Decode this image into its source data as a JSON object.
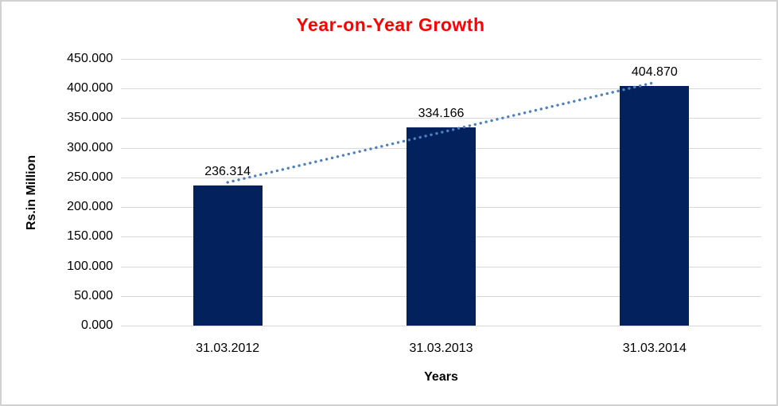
{
  "frame": {
    "background": "#ffffff",
    "border_color": "#d2d2d2"
  },
  "chart_data": {
    "type": "bar",
    "title": "Year-on-Year Growth",
    "title_color": "#ff0000",
    "xlabel": "Years",
    "ylabel": "Rs.in Million",
    "categories": [
      "31.03.2012",
      "31.03.2013",
      "31.03.2014"
    ],
    "values": [
      236.314,
      334.166,
      404.87
    ],
    "data_labels": [
      "236.314",
      "334.166",
      "404.870"
    ],
    "ylim": [
      0,
      450
    ],
    "yticks": {
      "values": [
        0,
        50,
        100,
        150,
        200,
        250,
        300,
        350,
        400,
        450
      ],
      "labels": [
        "0.000",
        "50.000",
        "100.000",
        "150.000",
        "200.000",
        "250.000",
        "300.000",
        "350.000",
        "400.000",
        "450.000"
      ]
    },
    "grid": true,
    "gridline_color": "#d9d9d9",
    "bar_color": "#03215c",
    "trendline": {
      "type": "linear",
      "style": "dotted",
      "color": "#4f81bd"
    },
    "legend": "none"
  }
}
